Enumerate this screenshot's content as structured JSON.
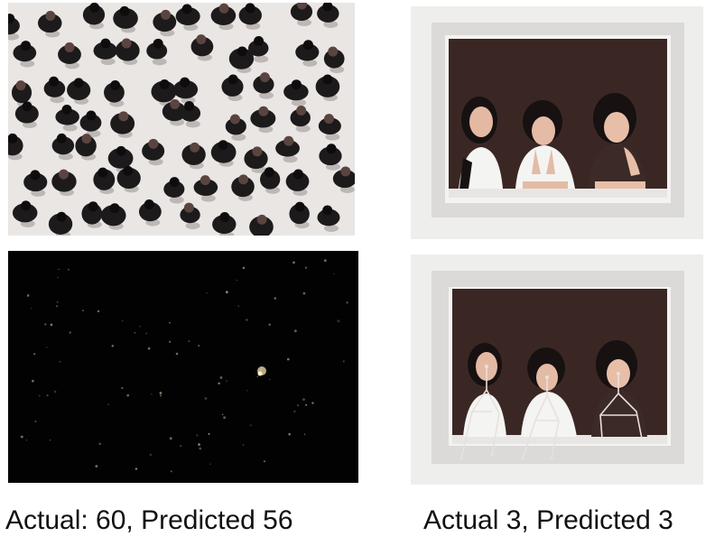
{
  "captions": {
    "left": "Actual: 60, Predicted 56",
    "right": "Actual 3, Predicted 3"
  },
  "colors": {
    "crowd_floor": "#e9e6e4",
    "person": "#1c1a1a",
    "density_bg": "#020202",
    "window_frame": "#f2f1f0",
    "window_interior": "#3a2724",
    "pose_lines": "#e8e0dc"
  }
}
